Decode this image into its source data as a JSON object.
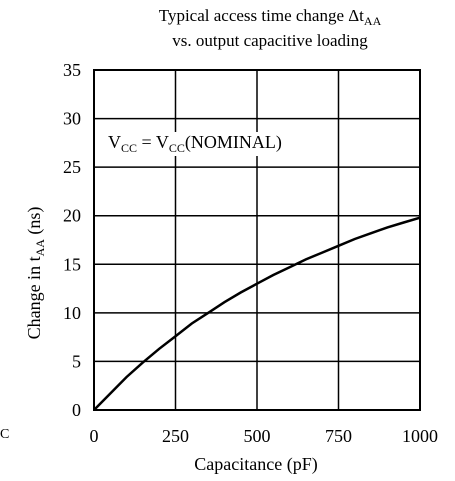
{
  "chart_data": {
    "type": "line",
    "title_line1_main": "Typical access time change Δt",
    "title_line1_sub": "AA",
    "title_line2": "vs. output capacitive loading",
    "xlabel": "Capacitance (pF)",
    "ylabel_main": "Change in t",
    "ylabel_sub": "AA",
    "ylabel_unit": " (ns)",
    "xlim": [
      0,
      1000
    ],
    "ylim": [
      0,
      35
    ],
    "x_ticks": [
      "0",
      "250",
      "500",
      "750",
      "1000"
    ],
    "y_ticks": [
      "0",
      "5",
      "10",
      "15",
      "20",
      "25",
      "30",
      "35"
    ],
    "grid": true,
    "annotation": {
      "v1": "V",
      "s1": "CC",
      "mid": " = V",
      "s2": "CC",
      "end": "(NOMINAL)"
    },
    "series": [
      {
        "x": [
          0,
          50,
          100,
          150,
          200,
          250,
          300,
          350,
          400,
          450,
          500,
          550,
          600,
          650,
          700,
          750,
          800,
          850,
          900,
          950,
          1000
        ],
        "y": [
          0,
          1.7,
          3.4,
          4.9,
          6.3,
          7.6,
          8.9,
          10.0,
          11.1,
          12.1,
          13.0,
          13.9,
          14.7,
          15.5,
          16.2,
          16.9,
          17.6,
          18.2,
          18.8,
          19.3,
          19.8
        ]
      }
    ]
  },
  "stray_text": "C"
}
